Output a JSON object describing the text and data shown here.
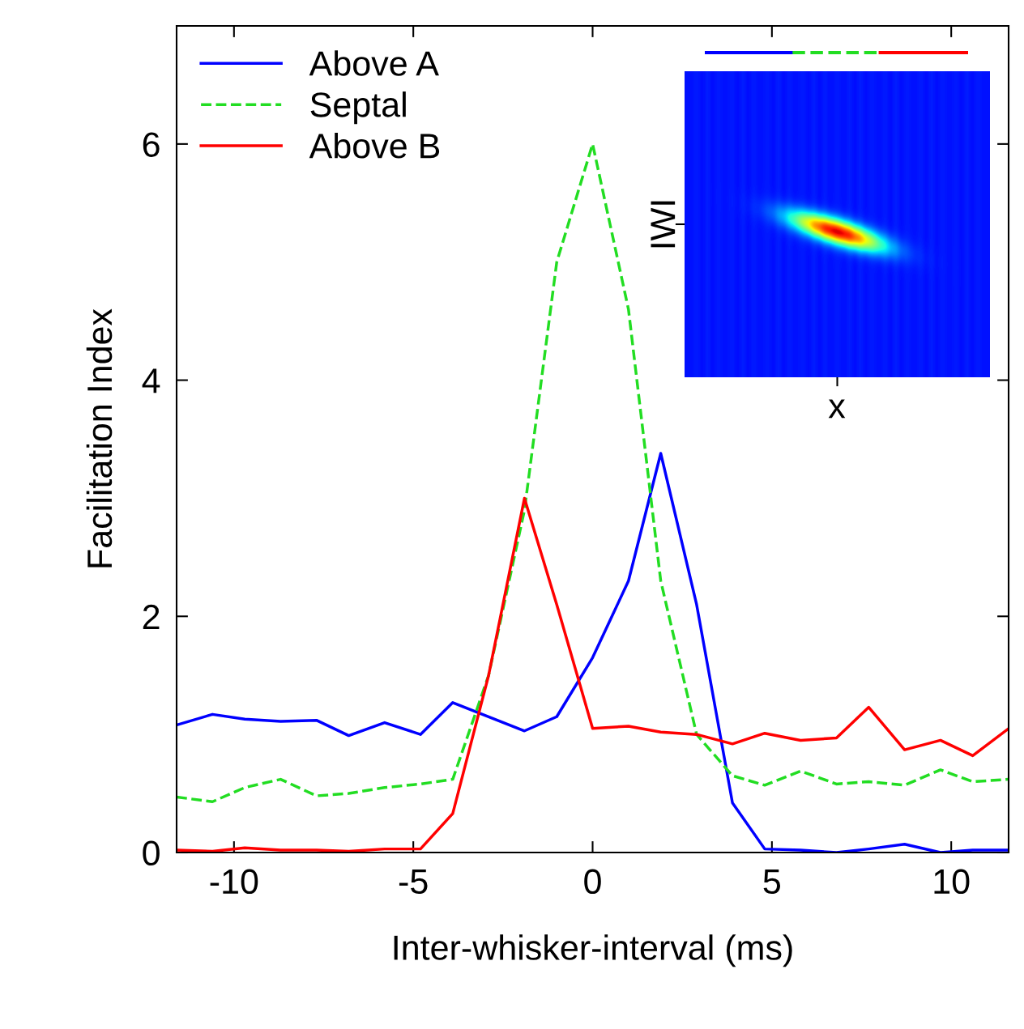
{
  "chart_data": {
    "type": "line",
    "xlabel": "Inter-whisker-interval (ms)",
    "ylabel": "Facilitation Index",
    "x": [
      -11.6,
      -10.6,
      -9.7,
      -8.7,
      -7.7,
      -6.8,
      -5.8,
      -4.8,
      -3.9,
      -2.9,
      -1.9,
      -1.0,
      0,
      1.0,
      1.9,
      2.9,
      3.9,
      4.8,
      5.8,
      6.8,
      7.7,
      8.7,
      9.7,
      10.6,
      11.6
    ],
    "series": [
      {
        "name": "Above A",
        "color": "#0000ff",
        "line_style": "solid",
        "values": [
          1.08,
          1.17,
          1.13,
          1.11,
          1.12,
          0.99,
          1.1,
          1.0,
          1.27,
          1.15,
          1.03,
          1.15,
          1.65,
          2.3,
          3.38,
          2.1,
          0.42,
          0.03,
          0.02,
          0.0,
          0.03,
          0.07,
          0.0,
          0.02,
          0.02
        ]
      },
      {
        "name": "Septal",
        "color": "#22dd22",
        "line_style": "dashed",
        "values": [
          0.47,
          0.43,
          0.55,
          0.62,
          0.48,
          0.5,
          0.55,
          0.58,
          0.62,
          1.5,
          2.9,
          5.0,
          6.0,
          4.6,
          2.3,
          1.0,
          0.65,
          0.57,
          0.69,
          0.58,
          0.6,
          0.57,
          0.7,
          0.6,
          0.62
        ]
      },
      {
        "name": "Above B",
        "color": "#ff0000",
        "line_style": "solid",
        "values": [
          0.02,
          0.01,
          0.04,
          0.02,
          0.02,
          0.01,
          0.03,
          0.03,
          0.33,
          1.5,
          3.0,
          2.1,
          1.05,
          1.07,
          1.02,
          1.0,
          0.92,
          1.01,
          0.95,
          0.97,
          1.23,
          0.87,
          0.95,
          0.82,
          1.05
        ]
      }
    ],
    "xlim": [
      -11.6,
      11.6
    ],
    "ylim": [
      0,
      7
    ],
    "xticks": [
      -10,
      -5,
      0,
      5,
      10
    ],
    "yticks": [
      0,
      2,
      4,
      6
    ],
    "legend": "top left",
    "grid": false,
    "annotations": [
      "IWI",
      "x"
    ]
  }
}
